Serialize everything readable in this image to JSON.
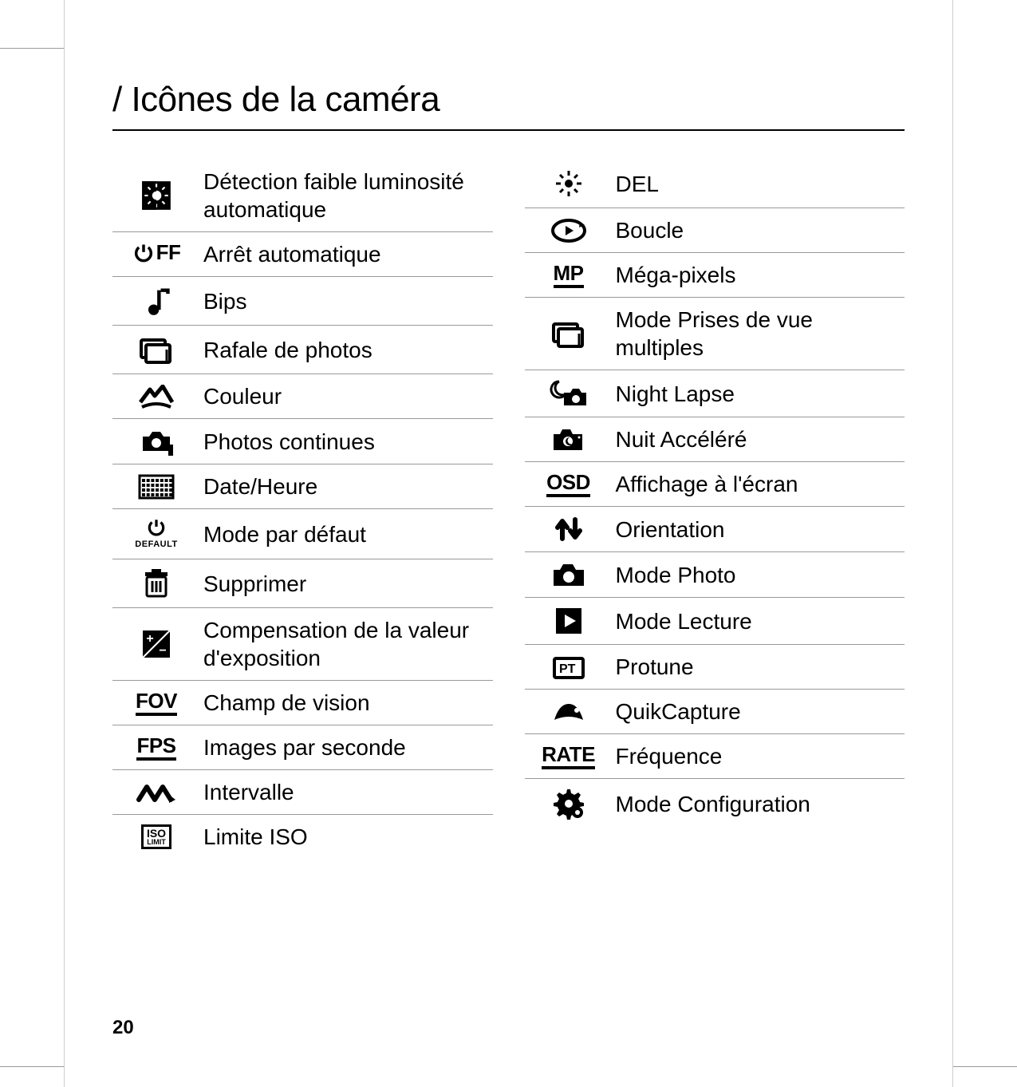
{
  "page": {
    "title": "/ Icônes de la caméra",
    "number": "20"
  },
  "left": [
    {
      "icon": "auto-low-light",
      "label": "Détection faible luminosité automatique"
    },
    {
      "icon": "auto-off",
      "label": "Arrêt automatique"
    },
    {
      "icon": "beeps",
      "label": "Bips"
    },
    {
      "icon": "burst",
      "label": "Rafale de photos"
    },
    {
      "icon": "color",
      "label": "Couleur"
    },
    {
      "icon": "continuous",
      "label": "Photos continues"
    },
    {
      "icon": "datetime",
      "label": "Date/Heure"
    },
    {
      "icon": "default-mode",
      "label": "Mode par défaut"
    },
    {
      "icon": "delete",
      "label": "Supprimer"
    },
    {
      "icon": "ev-comp",
      "label": "Compensation de la valeur d'exposition"
    },
    {
      "icon": "fov",
      "label": "Champ de vision"
    },
    {
      "icon": "fps",
      "label": "Images par seconde"
    },
    {
      "icon": "interval",
      "label": "Intervalle"
    },
    {
      "icon": "iso-limit",
      "label": "Limite ISO"
    }
  ],
  "right": [
    {
      "icon": "led",
      "label": "DEL"
    },
    {
      "icon": "loop",
      "label": "Boucle"
    },
    {
      "icon": "mp",
      "label": "Méga-pixels"
    },
    {
      "icon": "multi-shot",
      "label": "Mode Prises de vue multiples"
    },
    {
      "icon": "night-lapse",
      "label": "Night Lapse"
    },
    {
      "icon": "night-accel",
      "label": "Nuit Accéléré"
    },
    {
      "icon": "osd",
      "label": "Affichage à l'écran"
    },
    {
      "icon": "orientation",
      "label": "Orientation"
    },
    {
      "icon": "photo-mode",
      "label": "Mode Photo"
    },
    {
      "icon": "playback",
      "label": "Mode Lecture"
    },
    {
      "icon": "protune",
      "label": "Protune"
    },
    {
      "icon": "quikcapture",
      "label": "QuikCapture"
    },
    {
      "icon": "rate",
      "label": "Fréquence"
    },
    {
      "icon": "setup",
      "label": "Mode Configuration"
    }
  ],
  "iconText": {
    "auto-off": "FF",
    "fov": "FOV",
    "fps": "FPS",
    "mp": "MP",
    "osd": "OSD",
    "rate": "RATE",
    "default-sub": "DEFAULT",
    "iso-top": "ISO",
    "iso-bot": "LIMIT"
  }
}
